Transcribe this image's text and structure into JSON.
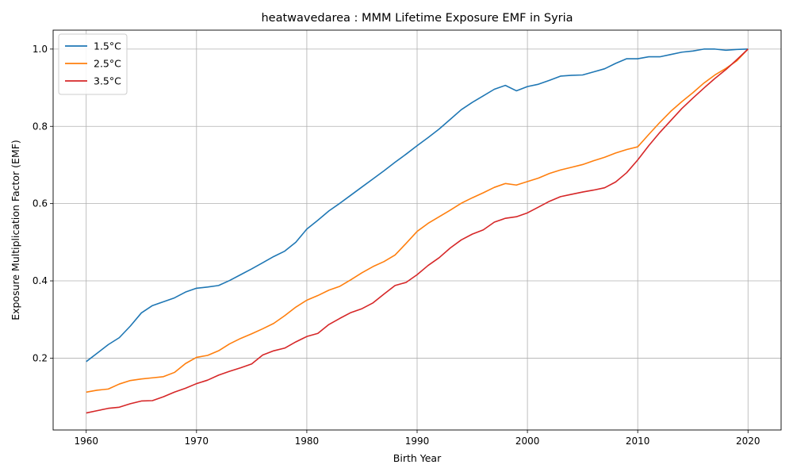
{
  "chart_data": {
    "type": "line",
    "title": "heatwavedarea : MMM Lifetime Exposure EMF in Syria",
    "xlabel": "Birth Year",
    "ylabel": "Exposure Multiplication Factor (EMF)",
    "xlim": [
      1957,
      2023
    ],
    "ylim": [
      0.014,
      1.049
    ],
    "xticks": [
      1960,
      1970,
      1980,
      1990,
      2000,
      2010,
      2020
    ],
    "yticks": [
      0.2,
      0.4,
      0.6,
      0.8,
      1.0
    ],
    "xtick_labels": [
      "1960",
      "1970",
      "1980",
      "1990",
      "2000",
      "2010",
      "2020"
    ],
    "ytick_labels": [
      "0.2",
      "0.4",
      "0.6",
      "0.8",
      "1.0"
    ],
    "grid": true,
    "legend_position": "top-left",
    "x": [
      1960,
      1961,
      1962,
      1963,
      1964,
      1965,
      1966,
      1967,
      1968,
      1969,
      1970,
      1971,
      1972,
      1973,
      1974,
      1975,
      1976,
      1977,
      1978,
      1979,
      1980,
      1981,
      1982,
      1983,
      1984,
      1985,
      1986,
      1987,
      1988,
      1989,
      1990,
      1991,
      1992,
      1993,
      1994,
      1995,
      1996,
      1997,
      1998,
      1999,
      2000,
      2001,
      2002,
      2003,
      2004,
      2005,
      2006,
      2007,
      2008,
      2009,
      2010,
      2011,
      2012,
      2013,
      2014,
      2015,
      2016,
      2017,
      2018,
      2019,
      2020
    ],
    "series": [
      {
        "name": "1.5°C",
        "color": "#1f77b4",
        "values": [
          0.191,
          0.213,
          0.235,
          0.253,
          0.283,
          0.317,
          0.336,
          0.346,
          0.356,
          0.371,
          0.381,
          0.384,
          0.388,
          0.401,
          0.416,
          0.431,
          0.447,
          0.463,
          0.477,
          0.5,
          0.534,
          0.557,
          0.581,
          0.601,
          0.622,
          0.643,
          0.664,
          0.685,
          0.707,
          0.728,
          0.75,
          0.771,
          0.793,
          0.818,
          0.843,
          0.862,
          0.879,
          0.896,
          0.906,
          0.892,
          0.903,
          0.909,
          0.919,
          0.93,
          0.932,
          0.933,
          0.941,
          0.949,
          0.963,
          0.975,
          0.975,
          0.98,
          0.98,
          0.986,
          0.992,
          0.995,
          1.0,
          1.0,
          0.997,
          0.999,
          1.0
        ]
      },
      {
        "name": "2.5°C",
        "color": "#ff7f0e",
        "values": [
          0.112,
          0.117,
          0.12,
          0.133,
          0.142,
          0.146,
          0.149,
          0.152,
          0.163,
          0.186,
          0.202,
          0.207,
          0.219,
          0.237,
          0.251,
          0.263,
          0.276,
          0.29,
          0.31,
          0.332,
          0.35,
          0.362,
          0.376,
          0.386,
          0.403,
          0.421,
          0.437,
          0.45,
          0.467,
          0.497,
          0.528,
          0.549,
          0.566,
          0.583,
          0.601,
          0.615,
          0.628,
          0.642,
          0.652,
          0.648,
          0.657,
          0.666,
          0.678,
          0.687,
          0.694,
          0.701,
          0.711,
          0.72,
          0.731,
          0.74,
          0.747,
          0.779,
          0.81,
          0.839,
          0.864,
          0.887,
          0.912,
          0.933,
          0.95,
          0.97,
          1.0
        ]
      },
      {
        "name": "3.5°C",
        "color": "#d62728",
        "values": [
          0.058,
          0.064,
          0.07,
          0.073,
          0.082,
          0.089,
          0.09,
          0.1,
          0.112,
          0.122,
          0.134,
          0.143,
          0.156,
          0.166,
          0.175,
          0.185,
          0.208,
          0.219,
          0.226,
          0.242,
          0.256,
          0.264,
          0.287,
          0.303,
          0.318,
          0.328,
          0.343,
          0.366,
          0.388,
          0.396,
          0.416,
          0.44,
          0.46,
          0.485,
          0.506,
          0.521,
          0.532,
          0.552,
          0.562,
          0.566,
          0.576,
          0.591,
          0.606,
          0.618,
          0.624,
          0.63,
          0.635,
          0.641,
          0.656,
          0.68,
          0.713,
          0.75,
          0.784,
          0.815,
          0.846,
          0.873,
          0.899,
          0.924,
          0.947,
          0.973,
          1.0
        ]
      }
    ]
  }
}
